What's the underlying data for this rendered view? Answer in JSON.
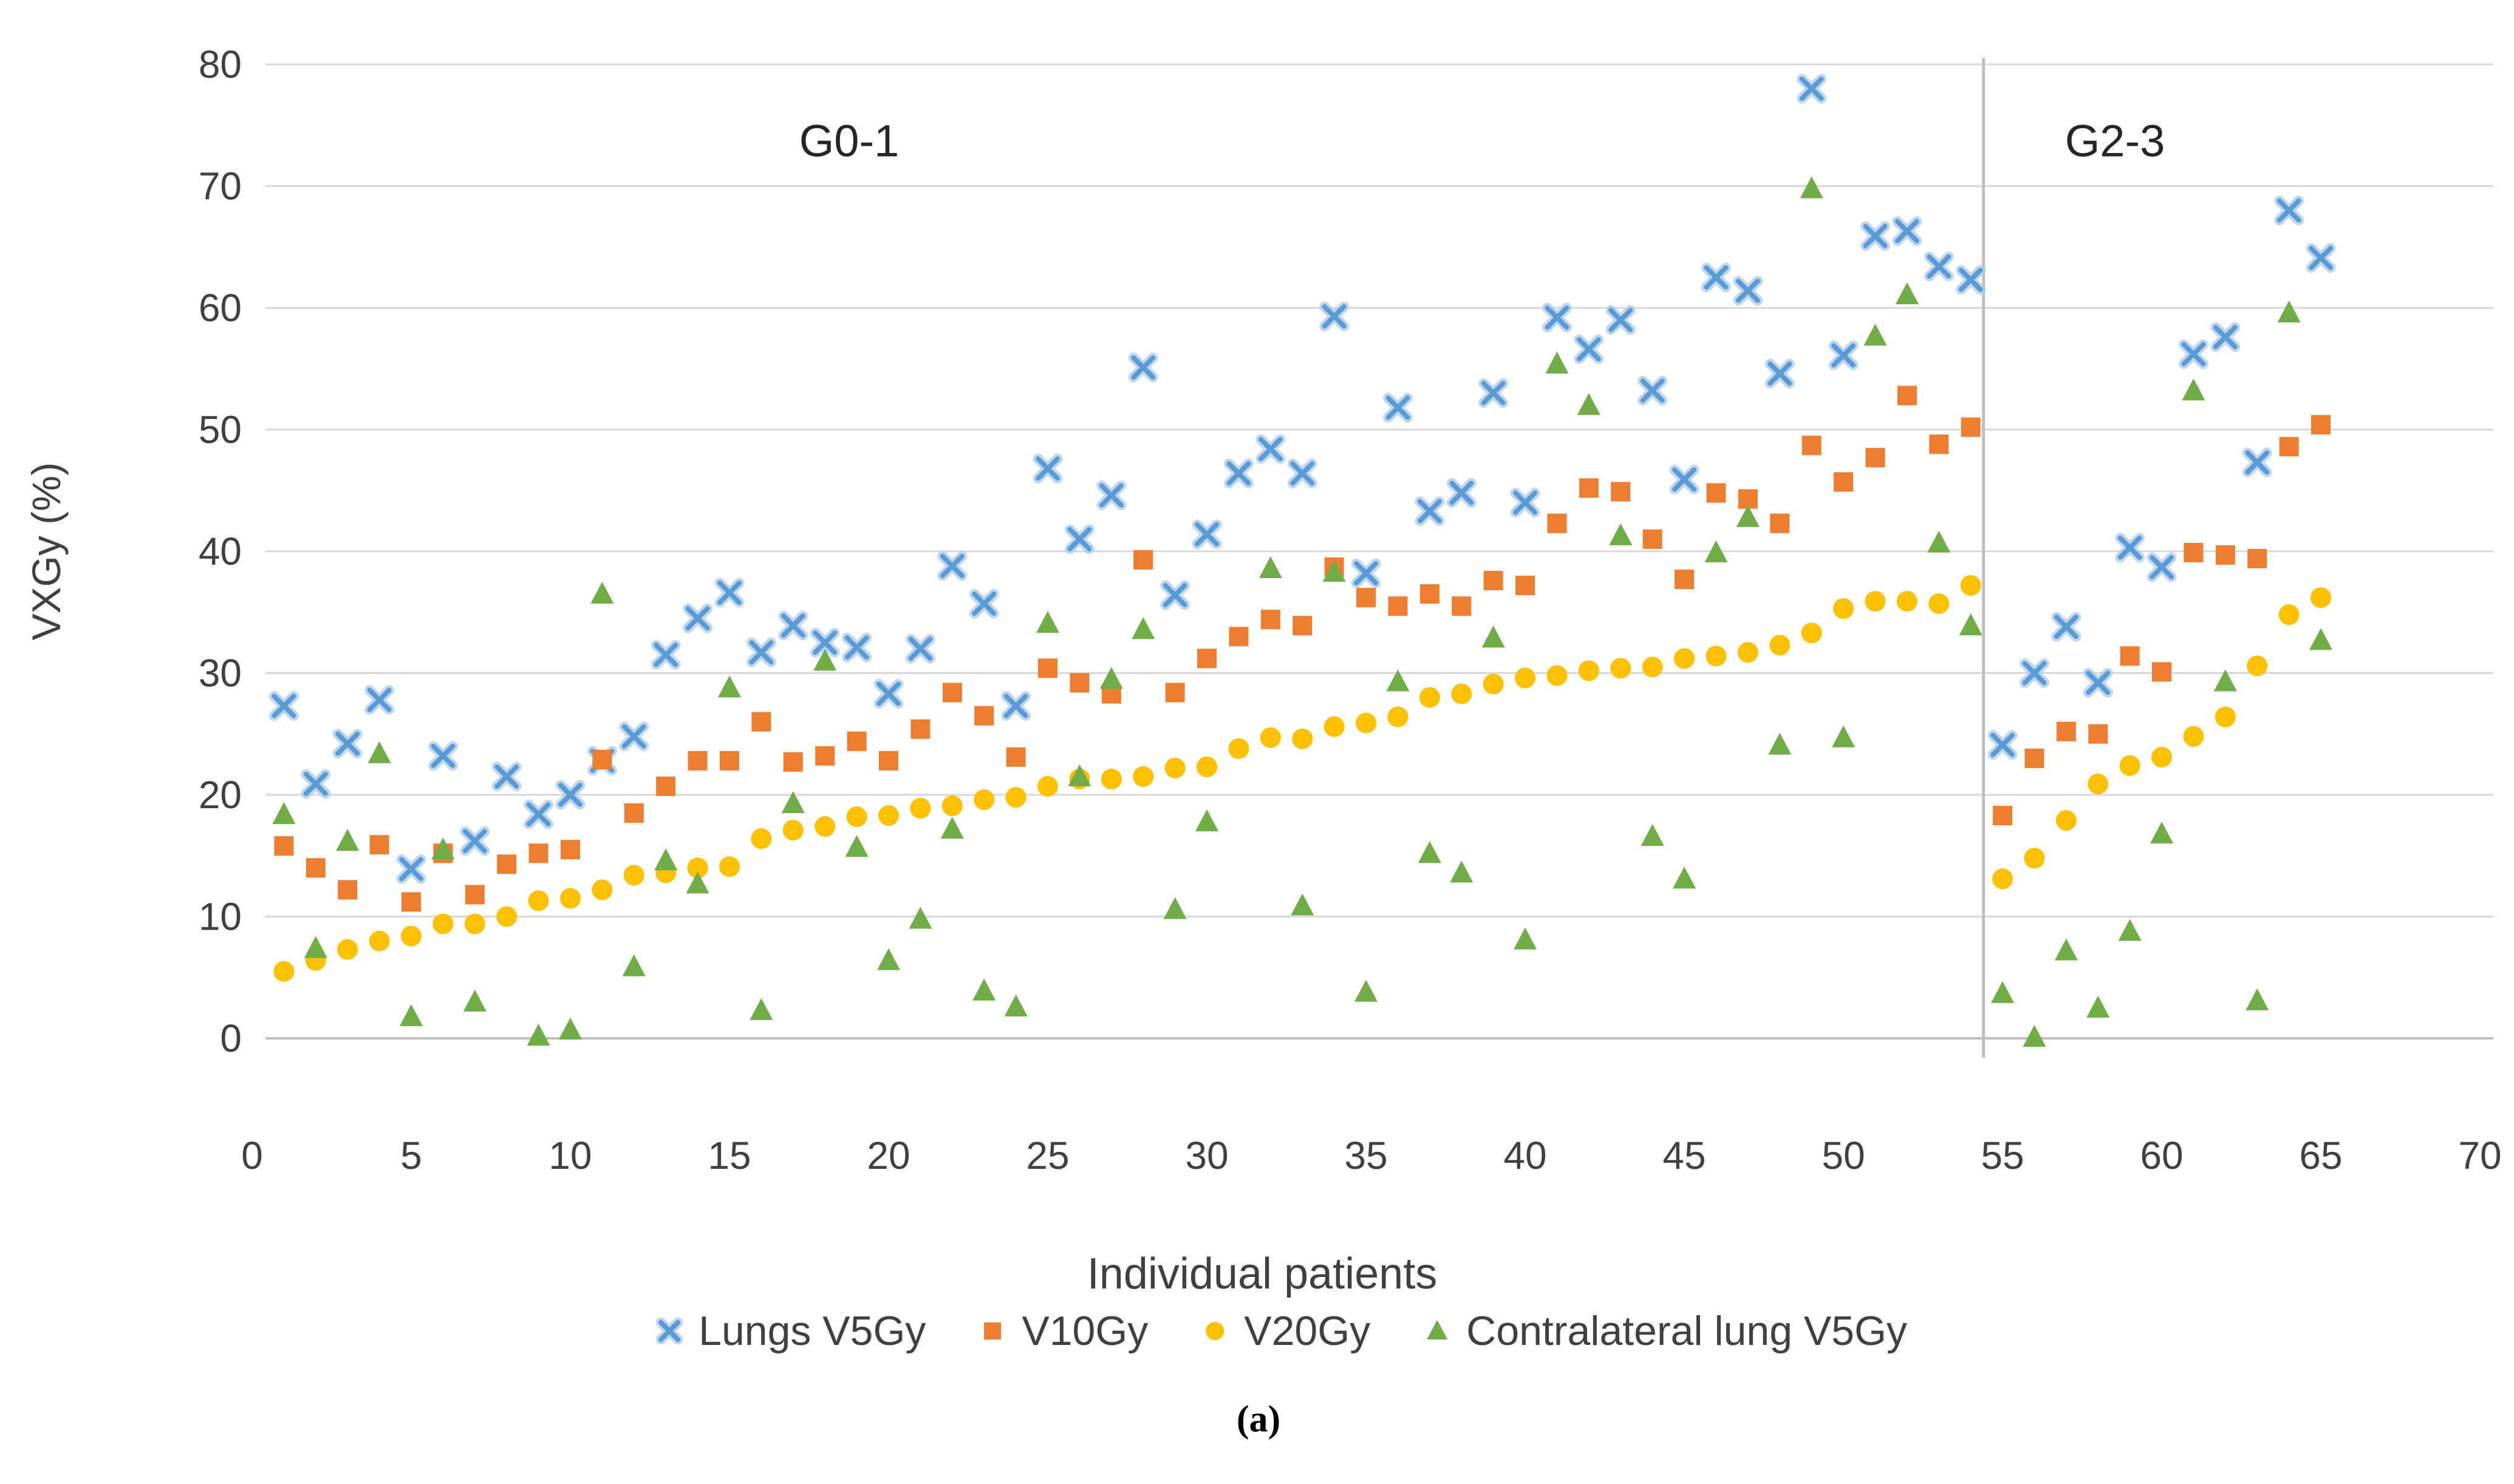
{
  "figure": {
    "caption": "(a)"
  },
  "chart_data": {
    "type": "scatter",
    "title": "",
    "xlabel": "Individual patients",
    "ylabel": "VXGy (%)",
    "xlim": [
      0,
      70
    ],
    "ylim": [
      0,
      80
    ],
    "x_ticks": [
      0,
      5,
      10,
      15,
      20,
      25,
      30,
      35,
      40,
      45,
      50,
      55,
      60,
      65,
      70
    ],
    "y_ticks": [
      0,
      10,
      20,
      30,
      40,
      50,
      60,
      70,
      80
    ],
    "grid": "horizontal",
    "legend_position": "bottom",
    "divider_x": 54.4,
    "annotations": [
      {
        "text": "G0-1",
        "x": 18.8,
        "y": 73
      },
      {
        "text": "G2-3",
        "x": 58.6,
        "y": 73
      }
    ],
    "colors": {
      "blue": "#5B9BD5",
      "blue_halo": "#A9C9EA",
      "orange": "#ED7D31",
      "yellow": "#FFC000",
      "green": "#70AD47",
      "gridline": "#D9D9D9",
      "axis_line": "#BFBFBF",
      "divider": "#BFBFBF",
      "tick_text": "#404040"
    },
    "patients": [
      1,
      2,
      3,
      4,
      5,
      6,
      7,
      8,
      9,
      10,
      11,
      12,
      13,
      14,
      15,
      16,
      17,
      18,
      19,
      20,
      21,
      22,
      23,
      24,
      25,
      26,
      27,
      28,
      29,
      30,
      31,
      32,
      33,
      34,
      35,
      36,
      37,
      38,
      39,
      40,
      41,
      42,
      43,
      44,
      45,
      46,
      47,
      48,
      49,
      50,
      51,
      52,
      53,
      54,
      55,
      56,
      57,
      58,
      59,
      60,
      61,
      62,
      63,
      64,
      65
    ],
    "series": [
      {
        "name": "Lungs V5Gy",
        "marker": "x",
        "color": "#5B9BD5",
        "values": [
          27.3,
          20.9,
          24.2,
          27.8,
          13.9,
          23.2,
          16.2,
          21.5,
          18.4,
          20,
          22.8,
          24.8,
          31.5,
          34.5,
          36.6,
          31.7,
          33.9,
          32.5,
          32.1,
          28.3,
          32,
          38.8,
          35.7,
          27.3,
          46.8,
          41,
          44.6,
          55.1,
          36.4,
          41.4,
          46.4,
          48.4,
          46.4,
          59.3,
          38.2,
          51.8,
          43.3,
          44.8,
          53,
          44,
          59.2,
          56.6,
          59,
          53.2,
          45.9,
          62.5,
          61.4,
          54.6,
          78,
          56.1,
          65.9,
          66.3,
          63.4,
          62.3,
          24.1,
          30,
          33.8,
          29.2,
          40.3,
          38.7,
          56.2,
          57.6,
          47.3,
          68,
          64.1
        ]
      },
      {
        "name": "V10Gy",
        "marker": "square",
        "color": "#ED7D31",
        "values": [
          15.8,
          14,
          12.2,
          15.9,
          11.2,
          15.2,
          11.8,
          14.3,
          15.2,
          15.5,
          22.9,
          18.5,
          20.7,
          22.8,
          22.8,
          26,
          22.7,
          23.2,
          24.4,
          22.8,
          25.4,
          28.4,
          26.5,
          23.1,
          30.4,
          29.2,
          28.3,
          39.3,
          28.4,
          31.2,
          33,
          34.4,
          33.9,
          38.7,
          36.2,
          35.5,
          36.5,
          35.5,
          37.6,
          37.2,
          42.3,
          45.2,
          44.9,
          41,
          37.7,
          44.8,
          44.3,
          42.3,
          48.7,
          45.7,
          47.7,
          52.8,
          48.8,
          50.2,
          18.3,
          23,
          25.2,
          25,
          31.4,
          30.1,
          39.9,
          39.7,
          39.4,
          48.6,
          50.4
        ]
      },
      {
        "name": "V20Gy",
        "marker": "circle",
        "color": "#FFC000",
        "values": [
          5.5,
          6.4,
          7.3,
          8,
          8.4,
          9.4,
          9.4,
          10,
          11.3,
          11.5,
          12.2,
          13.4,
          13.6,
          14,
          14.1,
          16.4,
          17.1,
          17.4,
          18.2,
          18.3,
          18.9,
          19.1,
          19.6,
          19.8,
          20.7,
          21.3,
          21.3,
          21.5,
          22.2,
          22.3,
          23.8,
          24.7,
          24.6,
          25.6,
          25.9,
          26.4,
          28,
          28.3,
          29.1,
          29.6,
          29.8,
          30.2,
          30.4,
          30.5,
          31.2,
          31.4,
          31.7,
          32.3,
          33.3,
          35.3,
          35.9,
          35.9,
          35.7,
          37.2,
          13.1,
          14.8,
          17.9,
          20.9,
          22.4,
          23.1,
          24.8,
          26.4,
          30.6,
          34.8,
          36.2
        ]
      },
      {
        "name": "Contralateral lung V5Gy",
        "marker": "triangle",
        "color": "#70AD47",
        "values": [
          18.4,
          7.4,
          16.2,
          23.4,
          1.8,
          15.5,
          3,
          null,
          0.2,
          0.7,
          36.5,
          5.9,
          14.6,
          12.7,
          28.8,
          2.3,
          19.3,
          31,
          15.7,
          6.4,
          9.8,
          17.2,
          3.9,
          2.6,
          34.1,
          21.5,
          29.5,
          33.6,
          10.6,
          17.8,
          null,
          38.6,
          10.9,
          38.3,
          3.8,
          29.3,
          15.2,
          13.6,
          32.9,
          8.1,
          55.4,
          52,
          41.3,
          16.6,
          13.1,
          39.9,
          42.8,
          24.1,
          69.8,
          24.7,
          57.7,
          61.1,
          40.7,
          33.9,
          3.7,
          0.1,
          7.2,
          2.5,
          8.8,
          16.8,
          53.2,
          29.3,
          3.1,
          59.6,
          32.7
        ]
      }
    ]
  }
}
